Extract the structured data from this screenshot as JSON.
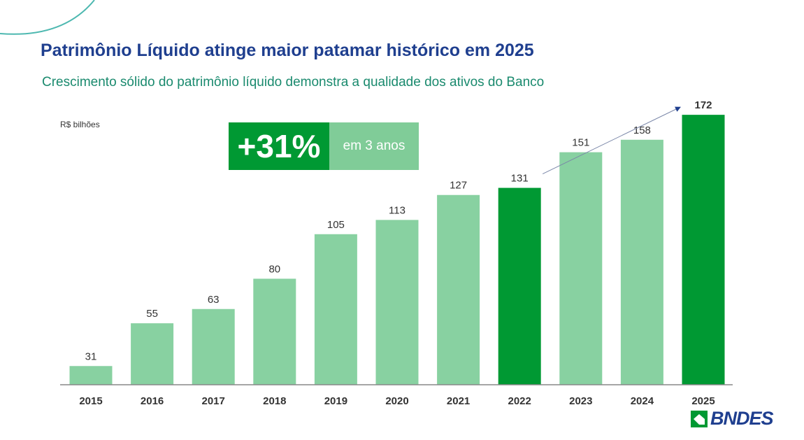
{
  "title": "Patrimônio Líquido atinge maior patamar histórico em 2025",
  "subtitle": "Crescimento sólido do patrimônio líquido demonstra a qualidade dos ativos do Banco",
  "badge": {
    "value": "+31%",
    "label": "em 3 anos"
  },
  "logo": "BNDES",
  "chart_data": {
    "type": "bar",
    "unit_label": "R$ bilhões",
    "categories": [
      "2015",
      "2016",
      "2017",
      "2018",
      "2019",
      "2020",
      "2021",
      "2022",
      "2023",
      "2024",
      "2025"
    ],
    "values": [
      31,
      55,
      63,
      80,
      105,
      113,
      127,
      131,
      151,
      158,
      172
    ],
    "highlighted": [
      "2022",
      "2025"
    ],
    "colors": {
      "default": "#88d1a1",
      "highlight": "#009933",
      "arrow": "#1f3f8f"
    },
    "annotation": {
      "type": "arrow",
      "from": "2022",
      "to": "2025"
    },
    "grid": false
  }
}
